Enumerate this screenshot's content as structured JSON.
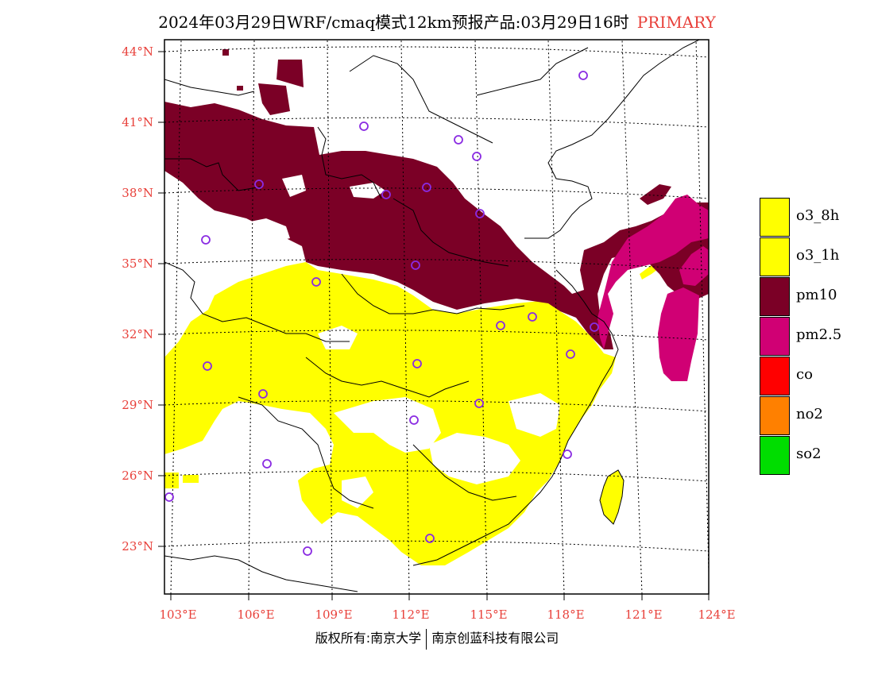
{
  "title": {
    "main": "2024年03月29日WRF/cmaq模式12km预报产品:03月29日16时",
    "tag": "PRIMARY"
  },
  "lat_labels": [
    "44°N",
    "41°N",
    "38°N",
    "35°N",
    "32°N",
    "29°N",
    "26°N",
    "23°N"
  ],
  "lon_labels": [
    "103°E",
    "106°E",
    "109°E",
    "112°E",
    "115°E",
    "118°E",
    "121°E",
    "124°E"
  ],
  "legend": [
    {
      "label": "o3_8h",
      "color": "#ffff00"
    },
    {
      "label": "o3_1h",
      "color": "#ffff00"
    },
    {
      "label": "pm10",
      "color": "#7b0026"
    },
    {
      "label": "pm2.5",
      "color": "#d00074"
    },
    {
      "label": "co",
      "color": "#ff0000"
    },
    {
      "label": "no2",
      "color": "#ff8000"
    },
    {
      "label": "so2",
      "color": "#00dd00"
    }
  ],
  "station_color": "#8a2be2",
  "footer": {
    "left": "版权所有:南京大学",
    "right": "南京创蓝科技有限公司"
  }
}
